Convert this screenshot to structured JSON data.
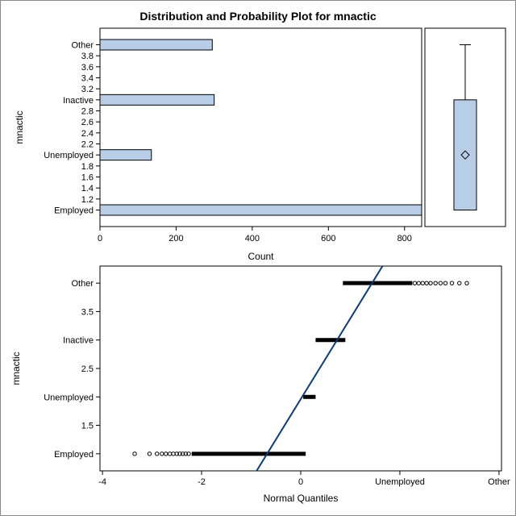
{
  "title": "Distribution and Probability Plot for mnactic",
  "colors": {
    "bar_fill": "#b8cee6",
    "box_fill": "#b8cee6",
    "fit_line": "#0c3a78",
    "outline": "#000000"
  },
  "chart_data": [
    {
      "type": "bar",
      "orientation": "horizontal",
      "ylabel": "mnactic",
      "xlabel": "Count",
      "xlim": [
        0,
        845
      ],
      "xticks": [
        "0",
        "200",
        "400",
        "600",
        "800"
      ],
      "xtick_values": [
        0,
        200,
        400,
        600,
        800
      ],
      "ylim": [
        0.7,
        4.3
      ],
      "ytick_labels": [
        "Employed",
        "1.2",
        "1.4",
        "1.6",
        "1.8",
        "Unemployed",
        "2.2",
        "2.4",
        "2.6",
        "2.8",
        "Inactive",
        "3.2",
        "3.4",
        "3.6",
        "3.8",
        "Other"
      ],
      "ytick_values": [
        1,
        1.2,
        1.4,
        1.6,
        1.8,
        2,
        2.2,
        2.4,
        2.6,
        2.8,
        3,
        3.2,
        3.4,
        3.6,
        3.8,
        4
      ],
      "categories": [
        "Employed",
        "Unemployed",
        "Inactive",
        "Other"
      ],
      "category_values": [
        1,
        2,
        3,
        4
      ],
      "values": [
        845,
        135,
        300,
        295
      ]
    },
    {
      "type": "box",
      "orientation": "vertical",
      "ylim": [
        0.7,
        4.3
      ],
      "min": 1,
      "q1": 1,
      "median": 1,
      "q3": 3,
      "max": 4,
      "mean": 2
    },
    {
      "type": "scatter",
      "xlabel": "Normal Quantiles",
      "ylabel": "mnactic",
      "xlim": [
        -4.05,
        4.05
      ],
      "xticks": [
        "-4",
        "-2",
        "0",
        "Unemployed",
        "Other"
      ],
      "xtick_values": [
        -4,
        -2,
        0,
        2,
        4
      ],
      "ylim": [
        0.7,
        4.3
      ],
      "ytick_labels": [
        "Employed",
        "1.5",
        "Unemployed",
        "2.5",
        "Inactive",
        "3.5",
        "Other"
      ],
      "ytick_values": [
        1,
        1.5,
        2,
        2.5,
        3,
        3.5,
        4
      ],
      "series": [
        {
          "segments": [
            {
              "y": 1,
              "x_from": -2.2,
              "x_to": 0.1
            },
            {
              "y": 2,
              "x_from": 0.05,
              "x_to": 0.3
            },
            {
              "y": 3,
              "x_from": 0.3,
              "x_to": 0.9
            },
            {
              "y": 4,
              "x_from": 0.85,
              "x_to": 2.25
            }
          ],
          "points": [
            {
              "x": -3.35,
              "y": 1
            },
            {
              "x": -3.05,
              "y": 1
            },
            {
              "x": -2.9,
              "y": 1
            },
            {
              "x": -2.8,
              "y": 1
            },
            {
              "x": -2.72,
              "y": 1
            },
            {
              "x": -2.64,
              "y": 1
            },
            {
              "x": -2.57,
              "y": 1
            },
            {
              "x": -2.5,
              "y": 1
            },
            {
              "x": -2.44,
              "y": 1
            },
            {
              "x": -2.38,
              "y": 1
            },
            {
              "x": -2.32,
              "y": 1
            },
            {
              "x": -2.26,
              "y": 1
            },
            {
              "x": 2.3,
              "y": 4
            },
            {
              "x": 2.38,
              "y": 4
            },
            {
              "x": 2.46,
              "y": 4
            },
            {
              "x": 2.54,
              "y": 4
            },
            {
              "x": 2.62,
              "y": 4
            },
            {
              "x": 2.72,
              "y": 4
            },
            {
              "x": 2.82,
              "y": 4
            },
            {
              "x": 2.92,
              "y": 4
            },
            {
              "x": 3.05,
              "y": 4
            },
            {
              "x": 3.2,
              "y": 4
            },
            {
              "x": 3.35,
              "y": 4
            }
          ]
        }
      ],
      "fit_line": {
        "x1": -0.89,
        "y1": 0.7,
        "x2": 1.65,
        "y2": 4.3
      }
    }
  ]
}
